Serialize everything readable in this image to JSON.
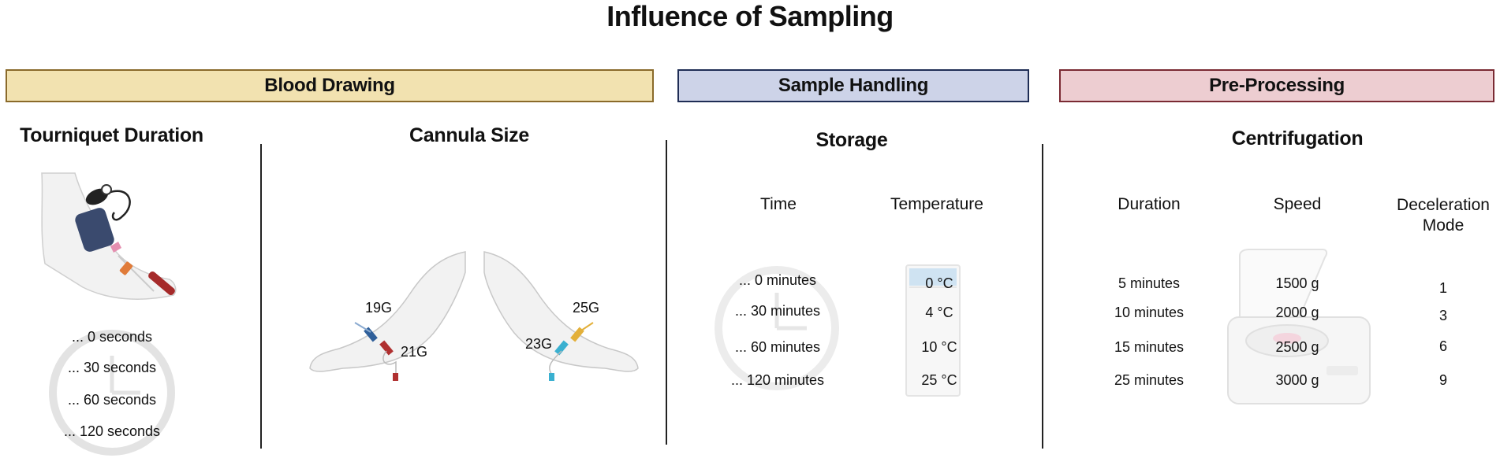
{
  "title": "Influence of Sampling",
  "sections": {
    "blood_drawing": {
      "label": "Blood Drawing",
      "fill": "#f2e2b0",
      "border": "#8a6a2a"
    },
    "sample_handling": {
      "label": "Sample Handling",
      "fill": "#cdd3e8",
      "border": "#1f2d55"
    },
    "pre_processing": {
      "label": "Pre-Processing",
      "fill": "#edcdd1",
      "border": "#7a2a33"
    }
  },
  "tourniquet": {
    "title": "Tourniquet Duration",
    "times": [
      "... 0 seconds",
      "... 30 seconds",
      "... 60 seconds",
      "... 120 seconds"
    ]
  },
  "cannula": {
    "title": "Cannula Size",
    "sizes": [
      "19G",
      "21G",
      "25G",
      "23G"
    ]
  },
  "storage": {
    "title": "Storage",
    "time_header": "Time",
    "temperature_header": "Temperature",
    "times": [
      "... 0 minutes",
      "... 30 minutes",
      "... 60 minutes",
      "... 120 minutes"
    ],
    "temperatures": [
      "0 °C",
      "4 °C",
      "10 °C",
      "25 °C"
    ]
  },
  "centrifugation": {
    "title": "Centrifugation",
    "duration_header": "Duration",
    "speed_header": "Speed",
    "deceleration_header_line1": "Deceleration",
    "deceleration_header_line2": "Mode",
    "durations": [
      "5 minutes",
      "10 minutes",
      "15 minutes",
      "25 minutes"
    ],
    "speeds": [
      "1500 g",
      "2000 g",
      "2500 g",
      "3000 g"
    ],
    "modes": [
      "1",
      "3",
      "6",
      "9"
    ]
  }
}
